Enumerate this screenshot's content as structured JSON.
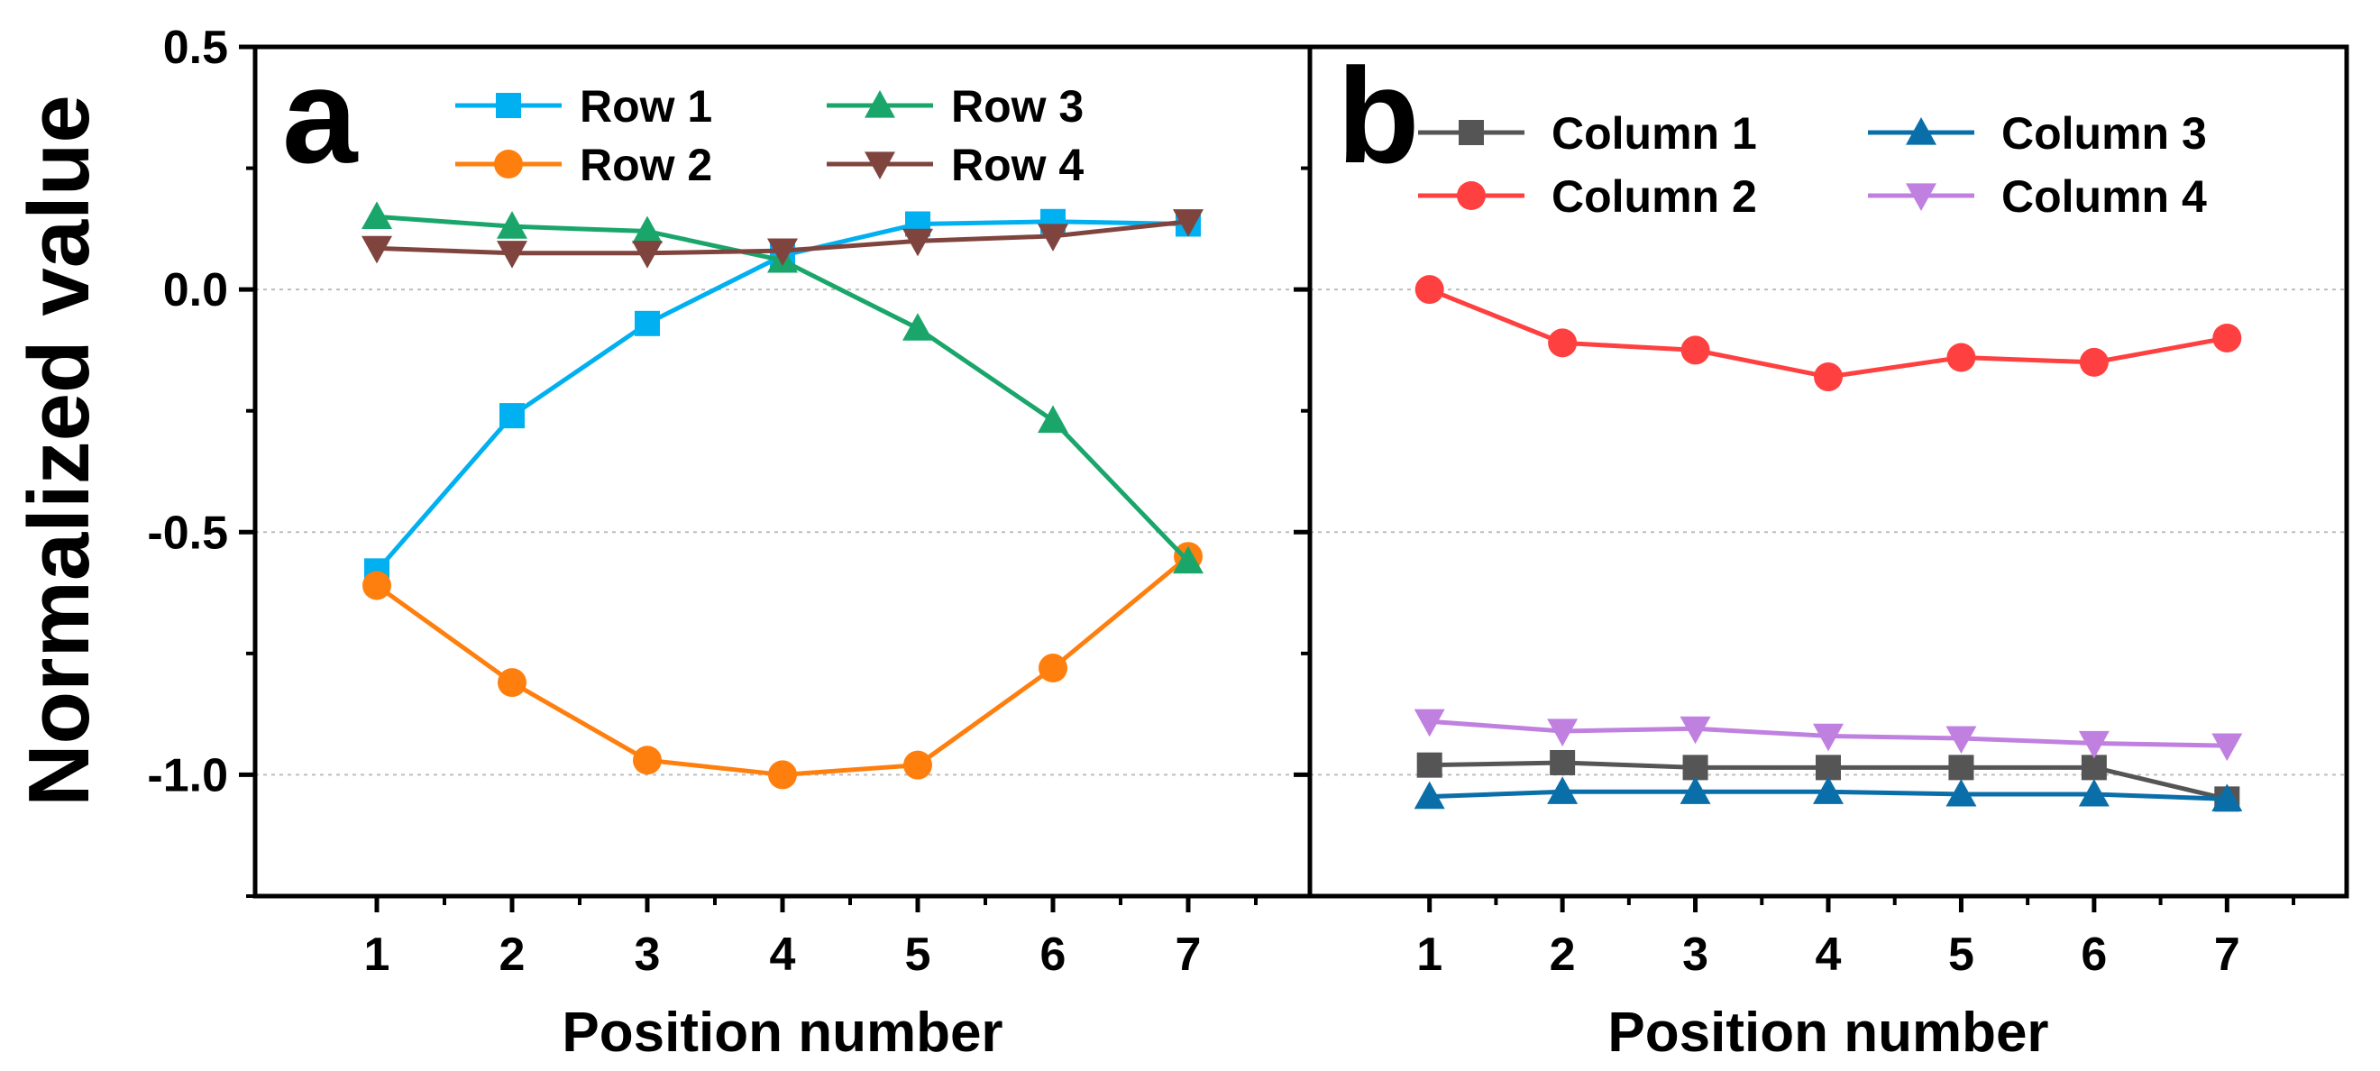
{
  "figure": {
    "ylabel": "Normalized value",
    "panel_a_letter": "a",
    "panel_b_letter": "b"
  },
  "chart_data": [
    {
      "panel": "a",
      "type": "line",
      "xlabel": "Position number",
      "ylabel": "Normalized value",
      "x": [
        1,
        2,
        3,
        4,
        5,
        6,
        7
      ],
      "xlim": [
        0.1,
        7.9
      ],
      "ylim": [
        -1.25,
        0.5
      ],
      "xticks": [
        "1",
        "2",
        "3",
        "4",
        "5",
        "6",
        "7"
      ],
      "yticks": [
        "0.5",
        "0.0",
        "-0.5",
        "-1.0"
      ],
      "ytick_values": [
        0.5,
        0.0,
        -0.5,
        -1.0
      ],
      "grid": "dotted horizontal at y ticks",
      "legend": "top, 2 columns",
      "series": [
        {
          "name": "Row 1",
          "color": "#00b0f0",
          "marker": "square",
          "values": [
            -0.58,
            -0.26,
            -0.07,
            0.07,
            0.135,
            0.14,
            0.135
          ]
        },
        {
          "name": "Row 2",
          "color": "#ff7f0e",
          "marker": "circle",
          "values": [
            -0.61,
            -0.81,
            -0.97,
            -1.0,
            -0.98,
            -0.78,
            -0.55
          ]
        },
        {
          "name": "Row 3",
          "color": "#1aa66b",
          "marker": "triangle-up",
          "values": [
            0.15,
            0.13,
            0.12,
            0.06,
            -0.08,
            -0.27,
            -0.56
          ]
        },
        {
          "name": "Row 4",
          "color": "#80443e",
          "marker": "triangle-down",
          "values": [
            0.085,
            0.075,
            0.075,
            0.08,
            0.1,
            0.11,
            0.14
          ]
        }
      ]
    },
    {
      "panel": "b",
      "type": "line",
      "xlabel": "Position number",
      "ylabel": "",
      "x": [
        1,
        2,
        3,
        4,
        5,
        6,
        7
      ],
      "xlim": [
        0.1,
        7.9
      ],
      "ylim": [
        -1.25,
        0.5
      ],
      "xticks": [
        "1",
        "2",
        "3",
        "4",
        "5",
        "6",
        "7"
      ],
      "yticks": [],
      "ytick_values": [
        0.5,
        0.0,
        -0.5,
        -1.0
      ],
      "grid": "dotted horizontal at y ticks",
      "legend": "top, 2 columns",
      "series": [
        {
          "name": "Column 1",
          "color": "#555555",
          "marker": "square",
          "values": [
            -0.98,
            -0.975,
            -0.985,
            -0.985,
            -0.985,
            -0.985,
            -1.05
          ]
        },
        {
          "name": "Column 2",
          "color": "#ff4040",
          "marker": "circle",
          "values": [
            0.0,
            -0.11,
            -0.125,
            -0.18,
            -0.14,
            -0.15,
            -0.1
          ]
        },
        {
          "name": "Column 3",
          "color": "#0a6fa8",
          "marker": "triangle-up",
          "values": [
            -1.045,
            -1.035,
            -1.035,
            -1.035,
            -1.04,
            -1.04,
            -1.05
          ]
        },
        {
          "name": "Column 4",
          "color": "#c080e0",
          "marker": "triangle-down",
          "values": [
            -0.89,
            -0.91,
            -0.905,
            -0.92,
            -0.925,
            -0.935,
            -0.94
          ]
        }
      ]
    }
  ]
}
